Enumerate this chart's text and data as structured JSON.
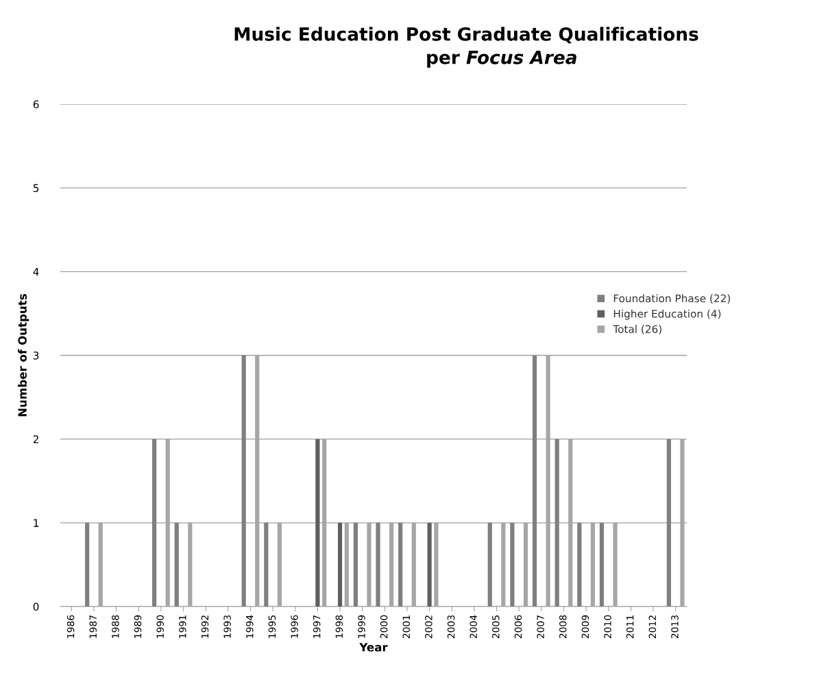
{
  "chart_data": {
    "type": "bar",
    "title": "Music Education Post Graduate Qualifications\nper Focus Area",
    "xlabel": "Year",
    "ylabel": "Number of Outputs",
    "categories": [
      "1986",
      "1987",
      "1988",
      "1989",
      "1990",
      "1991",
      "1992",
      "1993",
      "1994",
      "1995",
      "1996",
      "1997",
      "1998",
      "1999",
      "2000",
      "2001",
      "2002",
      "2003",
      "2004",
      "2005",
      "2006",
      "2007",
      "2008",
      "2009",
      "2010",
      "2011",
      "2012",
      "2013"
    ],
    "series": [
      {
        "name": "Foundation Phase (22)",
        "color": "#7f7f7f",
        "values": [
          0,
          1,
          0,
          0,
          2,
          1,
          0,
          0,
          3,
          1,
          0,
          0,
          0,
          1,
          1,
          1,
          0,
          0,
          0,
          1,
          1,
          3,
          2,
          1,
          1,
          0,
          0,
          2
        ]
      },
      {
        "name": "Higher Education (4)",
        "color": "#5f5f5f",
        "values": [
          0,
          0,
          0,
          0,
          0,
          0,
          0,
          0,
          0,
          0,
          0,
          2,
          1,
          0,
          0,
          0,
          1,
          0,
          0,
          0,
          0,
          0,
          0,
          0,
          0,
          0,
          0,
          0
        ]
      },
      {
        "name": "Total (26)",
        "color": "#a6a6a6",
        "values": [
          0,
          1,
          0,
          0,
          2,
          1,
          0,
          0,
          3,
          1,
          0,
          2,
          1,
          1,
          1,
          1,
          1,
          0,
          0,
          1,
          1,
          3,
          2,
          1,
          1,
          0,
          0,
          2
        ]
      }
    ],
    "ylim": [
      0,
      6
    ],
    "yticks": [
      0,
      1,
      2,
      3,
      4,
      5,
      6
    ],
    "grid": "y",
    "legend": "right"
  }
}
